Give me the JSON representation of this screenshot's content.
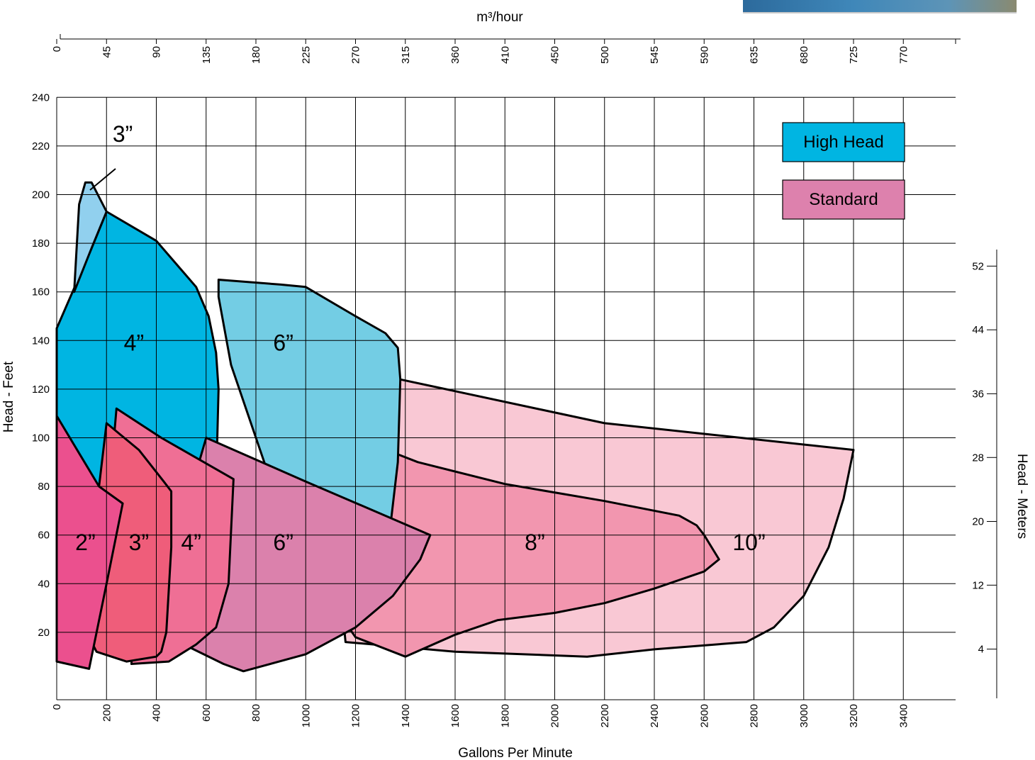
{
  "colors": {
    "high_head": "#00b5e2",
    "standard": "#dd81ad",
    "grid": "#000000",
    "background": "#ffffff"
  },
  "photo": {
    "name": "pump-photo-fragment"
  },
  "chart_data": {
    "type": "area",
    "title": "",
    "xlabel": "Gallons Per Minute",
    "ylabel": "Head - Feet",
    "x2label": "m³/hour",
    "y2label": "Head - Meters",
    "xlim": [
      0,
      3600
    ],
    "ylim": [
      0,
      240
    ],
    "grid": true,
    "legend": "top-right",
    "x_ticks": [
      0,
      200,
      400,
      600,
      800,
      1000,
      1200,
      1400,
      1600,
      1800,
      2000,
      2200,
      2400,
      2600,
      2800,
      3000,
      3200,
      3400
    ],
    "y_ticks": [
      20,
      40,
      60,
      80,
      100,
      120,
      140,
      160,
      180,
      200,
      220,
      240
    ],
    "x2_ticks": [
      {
        "label": "0",
        "gpm": 0
      },
      {
        "label": "45",
        "gpm": 200
      },
      {
        "label": "90",
        "gpm": 400
      },
      {
        "label": "135",
        "gpm": 600
      },
      {
        "label": "180",
        "gpm": 800
      },
      {
        "label": "225",
        "gpm": 1000
      },
      {
        "label": "270",
        "gpm": 1200
      },
      {
        "label": "315",
        "gpm": 1400
      },
      {
        "label": "360",
        "gpm": 1600
      },
      {
        "label": "410",
        "gpm": 1800
      },
      {
        "label": "450",
        "gpm": 2000
      },
      {
        "label": "500",
        "gpm": 2200
      },
      {
        "label": "545",
        "gpm": 2400
      },
      {
        "label": "590",
        "gpm": 2600
      },
      {
        "label": "635",
        "gpm": 2800
      },
      {
        "label": "680",
        "gpm": 3000
      },
      {
        "label": "725",
        "gpm": 3200
      },
      {
        "label": "770",
        "gpm": 3400
      }
    ],
    "y2_ticks": [
      {
        "label": "4",
        "feet": 13.1
      },
      {
        "label": "12",
        "feet": 39.4
      },
      {
        "label": "20",
        "feet": 65.6
      },
      {
        "label": "28",
        "feet": 91.9
      },
      {
        "label": "36",
        "feet": 118.1
      },
      {
        "label": "44",
        "feet": 144.4
      },
      {
        "label": "52",
        "feet": 170.6
      }
    ],
    "legend_entries": [
      {
        "label": "High Head",
        "color": "#00b5e2"
      },
      {
        "label": "Standard",
        "color": "#dd81ad"
      }
    ],
    "series": [
      {
        "label": "10”",
        "group": "standard",
        "color": "#f9c8d4",
        "label_at": [
          2780,
          57
        ],
        "points": [
          [
            1380,
            124
          ],
          [
            2200,
            106
          ],
          [
            3200,
            95
          ],
          [
            3160,
            75
          ],
          [
            3100,
            55
          ],
          [
            3000,
            35
          ],
          [
            2880,
            22
          ],
          [
            2770,
            16
          ],
          [
            2400,
            13
          ],
          [
            2130,
            10
          ],
          [
            1600,
            12
          ],
          [
            1160,
            16
          ],
          [
            1100,
            80
          ]
        ]
      },
      {
        "label": "8”",
        "group": "standard",
        "color": "#f296af",
        "label_at": [
          1920,
          57
        ],
        "points": [
          [
            1350,
            94
          ],
          [
            1450,
            90
          ],
          [
            1800,
            81
          ],
          [
            2200,
            74
          ],
          [
            2500,
            68
          ],
          [
            2570,
            64
          ],
          [
            2600,
            60
          ],
          [
            2660,
            50
          ],
          [
            2600,
            45
          ],
          [
            2400,
            38
          ],
          [
            2200,
            32
          ],
          [
            2000,
            28
          ],
          [
            1770,
            25
          ],
          [
            1600,
            19
          ],
          [
            1400,
            10
          ],
          [
            1200,
            18
          ],
          [
            1050,
            40
          ]
        ]
      },
      {
        "label": "6”",
        "group": "high-head",
        "color": "#73cde4",
        "label_at": [
          910,
          139
        ],
        "points": [
          [
            650,
            165
          ],
          [
            900,
            163
          ],
          [
            1000,
            162
          ],
          [
            1200,
            150
          ],
          [
            1320,
            143
          ],
          [
            1370,
            137
          ],
          [
            1380,
            124
          ],
          [
            1370,
            90
          ],
          [
            1330,
            55
          ],
          [
            1200,
            45
          ],
          [
            1000,
            55
          ],
          [
            850,
            85
          ],
          [
            700,
            130
          ],
          [
            650,
            158
          ]
        ]
      },
      {
        "label": "4”",
        "group": "high-head",
        "color": "#00b5e2",
        "label_at": [
          310,
          139
        ],
        "points": [
          [
            0,
            145
          ],
          [
            140,
            178
          ],
          [
            200,
            193
          ],
          [
            400,
            181
          ],
          [
            560,
            162
          ],
          [
            610,
            150
          ],
          [
            640,
            135
          ],
          [
            650,
            120
          ],
          [
            640,
            80
          ],
          [
            620,
            50
          ],
          [
            550,
            30
          ],
          [
            450,
            10
          ],
          [
            370,
            10
          ],
          [
            0,
            20
          ]
        ]
      },
      {
        "label": "3”",
        "group": "high-head",
        "color": "#91d0ee",
        "label_at": [
          265,
          225
        ],
        "points": [
          [
            90,
            196
          ],
          [
            115,
            205
          ],
          [
            140,
            205
          ],
          [
            200,
            193
          ],
          [
            140,
            178
          ],
          [
            70,
            160
          ]
        ]
      },
      {
        "label": "6”",
        "group": "standard",
        "color": "#db81ac",
        "label_at": [
          910,
          57
        ],
        "points": [
          [
            600,
            100
          ],
          [
            1000,
            82
          ],
          [
            1500,
            60
          ],
          [
            1460,
            50
          ],
          [
            1350,
            35
          ],
          [
            1200,
            22
          ],
          [
            1000,
            11
          ],
          [
            750,
            4
          ],
          [
            670,
            7
          ],
          [
            510,
            15
          ],
          [
            430,
            40
          ]
        ]
      },
      {
        "label": "4”",
        "group": "standard",
        "color": "#ef6f95",
        "label_at": [
          540,
          57
        ],
        "points": [
          [
            240,
            112
          ],
          [
            420,
            100
          ],
          [
            710,
            83
          ],
          [
            690,
            40
          ],
          [
            640,
            22
          ],
          [
            560,
            15
          ],
          [
            450,
            8
          ],
          [
            300,
            7
          ],
          [
            320,
            40
          ],
          [
            230,
            100
          ]
        ]
      },
      {
        "label": "3”",
        "group": "standard",
        "color": "#ef5d7a",
        "label_at": [
          330,
          57
        ],
        "points": [
          [
            200,
            106
          ],
          [
            330,
            95
          ],
          [
            430,
            82
          ],
          [
            460,
            78
          ],
          [
            460,
            55
          ],
          [
            440,
            20
          ],
          [
            420,
            12
          ],
          [
            400,
            10
          ],
          [
            280,
            8
          ],
          [
            160,
            12
          ],
          [
            120,
            20
          ],
          [
            170,
            80
          ]
        ]
      },
      {
        "label": "2”",
        "group": "standard",
        "color": "#eb508e",
        "label_at": [
          115,
          57
        ],
        "points": [
          [
            0,
            109
          ],
          [
            170,
            80
          ],
          [
            265,
            73
          ],
          [
            200,
            40
          ],
          [
            130,
            5
          ],
          [
            0,
            8
          ]
        ]
      }
    ]
  }
}
